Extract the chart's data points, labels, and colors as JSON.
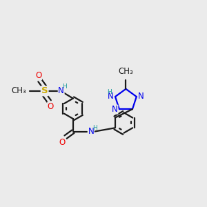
{
  "background_color": "#ebebeb",
  "bond_color": "#1a1a1a",
  "bond_width": 1.6,
  "dbo": 0.055,
  "atom_colors": {
    "N": "#0000ee",
    "O": "#ee0000",
    "S": "#ccaa00",
    "H": "#1a9a9a",
    "C": "#1a1a1a"
  },
  "fs": 8.5,
  "fs2": 6.5
}
